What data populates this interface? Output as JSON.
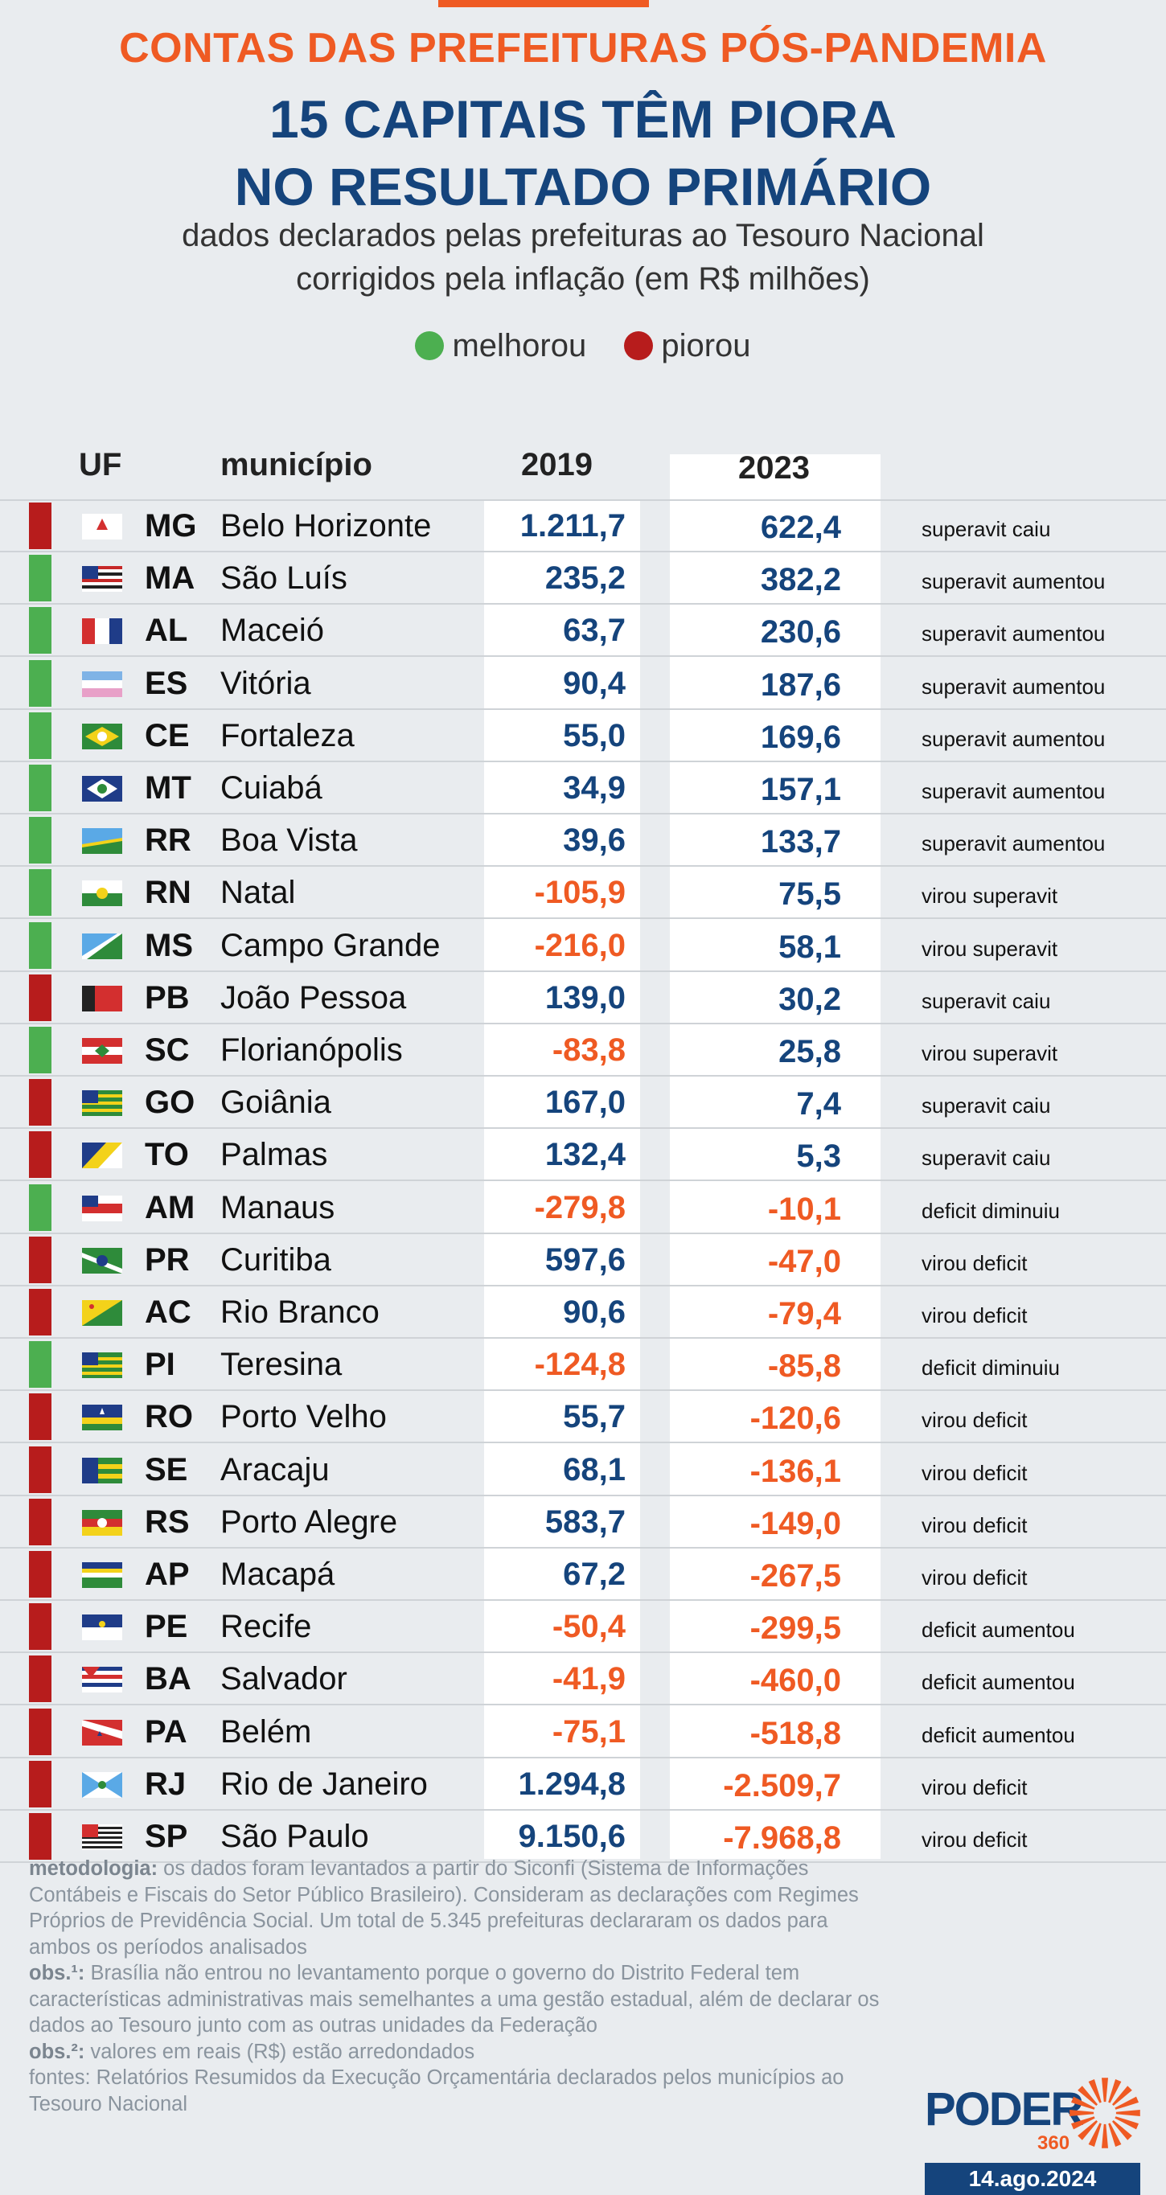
{
  "kicker": "CONTAS DAS PREFEITURAS PÓS-PANDEMIA",
  "title_line1": "15 CAPITAIS TÊM PIORA",
  "title_line2": "NO RESULTADO PRIMÁRIO",
  "subtitle_line1": "dados declarados pelas prefeituras ao Tesouro Nacional",
  "subtitle_line2": "corrigidos pela inflação (em R$ milhões)",
  "legend": [
    {
      "label": "melhorou",
      "color": "#4caf50"
    },
    {
      "label": "piorou",
      "color": "#b71c1c"
    }
  ],
  "colors": {
    "positive": "#15447c",
    "negative": "#ef5a23",
    "improved": "#4caf50",
    "worsened": "#b71c1c",
    "accent": "#ef5a23"
  },
  "chart_data": {
    "type": "table",
    "columns": [
      "UF",
      "município",
      "2019",
      "2023"
    ],
    "rows": [
      {
        "uf": "MG",
        "municipio": "Belo Horizonte",
        "v2019": "1.211,7",
        "v2023": "622,4",
        "status": "superavit caiu",
        "trend": "piorou"
      },
      {
        "uf": "MA",
        "municipio": "São Luís",
        "v2019": "235,2",
        "v2023": "382,2",
        "status": "superavit aumentou",
        "trend": "melhorou"
      },
      {
        "uf": "AL",
        "municipio": "Maceió",
        "v2019": "63,7",
        "v2023": "230,6",
        "status": "superavit aumentou",
        "trend": "melhorou"
      },
      {
        "uf": "ES",
        "municipio": "Vitória",
        "v2019": "90,4",
        "v2023": "187,6",
        "status": "superavit aumentou",
        "trend": "melhorou"
      },
      {
        "uf": "CE",
        "municipio": "Fortaleza",
        "v2019": "55,0",
        "v2023": "169,6",
        "status": "superavit aumentou",
        "trend": "melhorou"
      },
      {
        "uf": "MT",
        "municipio": "Cuiabá",
        "v2019": "34,9",
        "v2023": "157,1",
        "status": "superavit aumentou",
        "trend": "melhorou"
      },
      {
        "uf": "RR",
        "municipio": "Boa Vista",
        "v2019": "39,6",
        "v2023": "133,7",
        "status": "superavit aumentou",
        "trend": "melhorou"
      },
      {
        "uf": "RN",
        "municipio": "Natal",
        "v2019": "-105,9",
        "v2023": "75,5",
        "status": "virou superavit",
        "trend": "melhorou"
      },
      {
        "uf": "MS",
        "municipio": "Campo Grande",
        "v2019": "-216,0",
        "v2023": "58,1",
        "status": "virou superavit",
        "trend": "melhorou"
      },
      {
        "uf": "PB",
        "municipio": "João Pessoa",
        "v2019": "139,0",
        "v2023": "30,2",
        "status": "superavit caiu",
        "trend": "piorou"
      },
      {
        "uf": "SC",
        "municipio": "Florianópolis",
        "v2019": "-83,8",
        "v2023": "25,8",
        "status": "virou superavit",
        "trend": "melhorou"
      },
      {
        "uf": "GO",
        "municipio": "Goiânia",
        "v2019": "167,0",
        "v2023": "7,4",
        "status": "superavit caiu",
        "trend": "piorou"
      },
      {
        "uf": "TO",
        "municipio": "Palmas",
        "v2019": "132,4",
        "v2023": "5,3",
        "status": "superavit caiu",
        "trend": "piorou"
      },
      {
        "uf": "AM",
        "municipio": "Manaus",
        "v2019": "-279,8",
        "v2023": "-10,1",
        "status": "deficit diminuiu",
        "trend": "melhorou"
      },
      {
        "uf": "PR",
        "municipio": "Curitiba",
        "v2019": "597,6",
        "v2023": "-47,0",
        "status": "virou deficit",
        "trend": "piorou"
      },
      {
        "uf": "AC",
        "municipio": "Rio Branco",
        "v2019": "90,6",
        "v2023": "-79,4",
        "status": "virou deficit",
        "trend": "piorou"
      },
      {
        "uf": "PI",
        "municipio": "Teresina",
        "v2019": "-124,8",
        "v2023": "-85,8",
        "status": "deficit diminuiu",
        "trend": "melhorou"
      },
      {
        "uf": "RO",
        "municipio": "Porto Velho",
        "v2019": "55,7",
        "v2023": "-120,6",
        "status": "virou deficit",
        "trend": "piorou"
      },
      {
        "uf": "SE",
        "municipio": "Aracaju",
        "v2019": "68,1",
        "v2023": "-136,1",
        "status": "virou deficit",
        "trend": "piorou"
      },
      {
        "uf": "RS",
        "municipio": "Porto Alegre",
        "v2019": "583,7",
        "v2023": "-149,0",
        "status": "virou deficit",
        "trend": "piorou"
      },
      {
        "uf": "AP",
        "municipio": "Macapá",
        "v2019": "67,2",
        "v2023": "-267,5",
        "status": "virou deficit",
        "trend": "piorou"
      },
      {
        "uf": "PE",
        "municipio": "Recife",
        "v2019": "-50,4",
        "v2023": "-299,5",
        "status": "deficit aumentou",
        "trend": "piorou"
      },
      {
        "uf": "BA",
        "municipio": "Salvador",
        "v2019": "-41,9",
        "v2023": "-460,0",
        "status": "deficit aumentou",
        "trend": "piorou"
      },
      {
        "uf": "PA",
        "municipio": "Belém",
        "v2019": "-75,1",
        "v2023": "-518,8",
        "status": "deficit aumentou",
        "trend": "piorou"
      },
      {
        "uf": "RJ",
        "municipio": "Rio de Janeiro",
        "v2019": "1.294,8",
        "v2023": "-2.509,7",
        "status": "virou deficit",
        "trend": "piorou"
      },
      {
        "uf": "SP",
        "municipio": "São Paulo",
        "v2019": "9.150,6",
        "v2023": "-7.968,8",
        "status": "virou deficit",
        "trend": "piorou"
      }
    ]
  },
  "notes": {
    "metodologia_label": "metodologia:",
    "metodologia_text": " os dados foram levantados a partir do Siconfi (Sistema de Informações Contábeis e Fiscais do Setor Público Brasileiro). Consideram as declarações com Regimes Próprios de Previdência Social. Um total de 5.345 prefeituras declararam os dados para ambos os períodos analisados",
    "obs1_label": "obs.¹:",
    "obs1_text": " Brasília não entrou no levantamento porque o governo do Distrito Federal tem características administrativas mais semelhantes a uma gestão estadual, além de declarar os dados ao Tesouro junto com as outras unidades da Federação",
    "obs2_label": "obs.²:",
    "obs2_text": " valores em reais (R$) estão arredondados",
    "fontes_text": "fontes: Relatórios Resumidos da Execução Orçamentária declarados pelos municípios ao Tesouro Nacional"
  },
  "logo": {
    "word": "PODER",
    "num": "360"
  },
  "date": "14.ago.2024"
}
